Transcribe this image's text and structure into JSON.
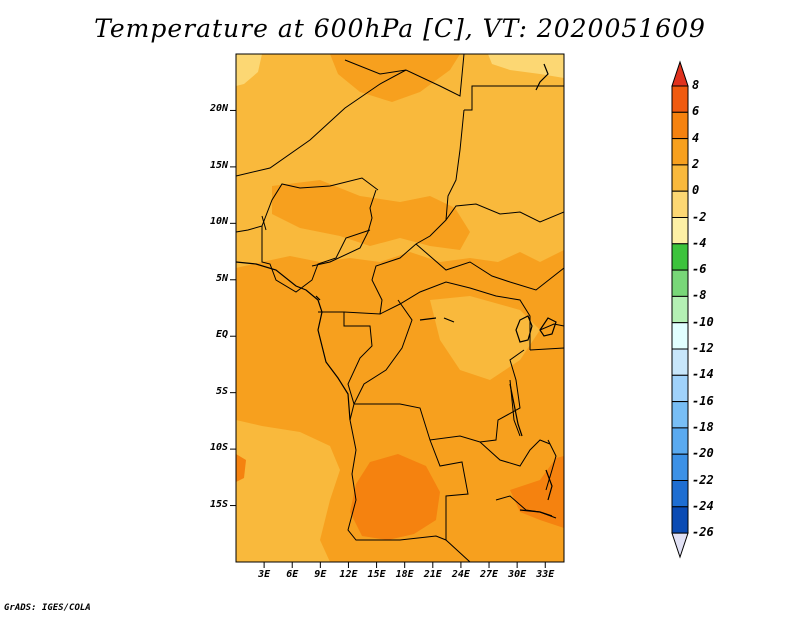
{
  "title": "Temperature at 600hPa [C], VT: 2020051609",
  "credit": "GrADS: IGES/COLA",
  "map": {
    "y_ticks": [
      {
        "label": "20N",
        "lat": 20
      },
      {
        "label": "15N",
        "lat": 15
      },
      {
        "label": "10N",
        "lat": 10
      },
      {
        "label": "5N",
        "lat": 5
      },
      {
        "label": "EQ",
        "lat": 0
      },
      {
        "label": "5S",
        "lat": -5
      },
      {
        "label": "10S",
        "lat": -10
      },
      {
        "label": "15S",
        "lat": -15
      }
    ],
    "x_ticks": [
      {
        "label": "3E",
        "lon": 3
      },
      {
        "label": "6E",
        "lon": 6
      },
      {
        "label": "9E",
        "lon": 9
      },
      {
        "label": "12E",
        "lon": 12
      },
      {
        "label": "15E",
        "lon": 15
      },
      {
        "label": "18E",
        "lon": 18
      },
      {
        "label": "21E",
        "lon": 21
      },
      {
        "label": "24E",
        "lon": 24
      },
      {
        "label": "27E",
        "lon": 27
      },
      {
        "label": "30E",
        "lon": 30
      },
      {
        "label": "33E",
        "lon": 33
      }
    ]
  },
  "colorbar": {
    "labels": [
      "8",
      "6",
      "4",
      "2",
      "0",
      "-2",
      "-4",
      "-6",
      "-8",
      "-10",
      "-12",
      "-14",
      "-16",
      "-18",
      "-20",
      "-22",
      "-24",
      "-26"
    ],
    "colors": [
      "#e0321e",
      "#f05a0f",
      "#f5820f",
      "#f7a01e",
      "#f9b93c",
      "#fcd773",
      "#fdf0a5",
      "#3cc33c",
      "#78d778",
      "#b4f0b4",
      "#e1ffff",
      "#c8e6fa",
      "#a0d2fa",
      "#78bef5",
      "#5aaaf0",
      "#3c91e6",
      "#1e6ed2",
      "#0a4bb4",
      "#1e1e8c",
      "#e1e1f5"
    ]
  }
}
